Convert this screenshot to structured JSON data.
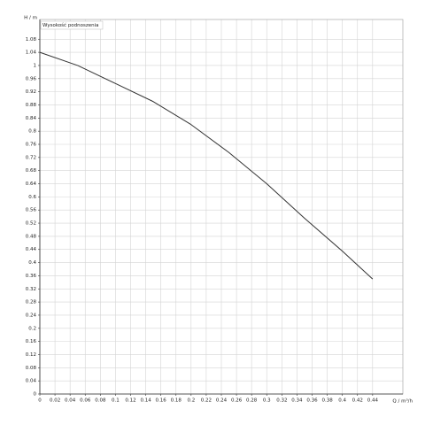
{
  "chart_data": {
    "type": "line",
    "title": "Wysokość podnoszenia",
    "y_label": "H / m",
    "x_label": "Q / m³/h",
    "x": [
      0,
      0.05,
      0.1,
      0.15,
      0.2,
      0.25,
      0.3,
      0.35,
      0.4,
      0.44
    ],
    "series": [
      {
        "name": "Wysokość podnoszenia",
        "color": "#333333",
        "values": [
          1.04,
          1.0,
          0.945,
          0.89,
          0.82,
          0.735,
          0.64,
          0.535,
          0.435,
          0.35
        ]
      }
    ],
    "xlim": [
      0,
      0.48
    ],
    "ylim": [
      0,
      1.14
    ],
    "xticks": [
      0,
      0.02,
      0.04,
      0.06,
      0.08,
      0.1,
      0.12,
      0.14,
      0.16,
      0.18,
      0.2,
      0.22,
      0.24,
      0.26,
      0.28,
      0.3,
      0.32,
      0.34,
      0.36,
      0.38,
      0.4,
      0.42,
      0.44
    ],
    "yticks": [
      0,
      0.04,
      0.08,
      0.12,
      0.16,
      0.2,
      0.24,
      0.28,
      0.32,
      0.36,
      0.4,
      0.44,
      0.48,
      0.52,
      0.56,
      0.6,
      0.64,
      0.68,
      0.72,
      0.76,
      0.8,
      0.84,
      0.88,
      0.92,
      0.96,
      1,
      1.04,
      1.08
    ],
    "grid": true
  }
}
